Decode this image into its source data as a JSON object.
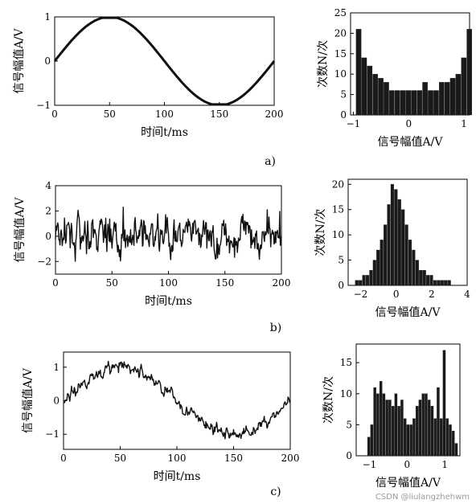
{
  "watermark": "CSDN @liulangzhehwm",
  "chart_data": [
    {
      "id": "a_time",
      "type": "line",
      "panel": "a)",
      "title": "",
      "xlabel": "时间t/ms",
      "ylabel": "信号幅值A/V",
      "xlim": [
        0,
        200
      ],
      "ylim": [
        -1,
        1
      ],
      "xticks": [
        0,
        50,
        100,
        150,
        200
      ],
      "yticks": [
        -1,
        0,
        1
      ],
      "signal": {
        "kind": "sine",
        "amplitude": 1.0,
        "period_ms": 200,
        "noise": 0.0
      },
      "grid": false
    },
    {
      "id": "a_hist",
      "type": "bar",
      "panel": "a)",
      "title": "",
      "xlabel": "信号幅值A/V",
      "ylabel": "次数N/次",
      "xlim": [
        -1.05,
        1.1
      ],
      "ylim": [
        0,
        25
      ],
      "xticks": [
        -1,
        0,
        1
      ],
      "yticks": [
        0,
        5,
        10,
        15,
        20,
        25
      ],
      "bin_start": -0.95,
      "bin_width": 0.1,
      "values": [
        21,
        14,
        12,
        10,
        9,
        8,
        6,
        6,
        6,
        6,
        6,
        6,
        8,
        6,
        6,
        8,
        8,
        9,
        10,
        14,
        21
      ],
      "grid": false
    },
    {
      "id": "b_time",
      "type": "line",
      "panel": "b)",
      "title": "",
      "xlabel": "时间t/ms",
      "ylabel": "信号幅值A/V",
      "xlim": [
        0,
        200
      ],
      "ylim": [
        -3,
        4
      ],
      "xticks": [
        0,
        50,
        100,
        150,
        200
      ],
      "yticks": [
        -2,
        0,
        2,
        4
      ],
      "signal": {
        "kind": "noise",
        "amplitude": 0.0,
        "period_ms": 200,
        "noise": 1.0
      },
      "grid": false
    },
    {
      "id": "b_hist",
      "type": "bar",
      "panel": "b)",
      "title": "",
      "xlabel": "信号幅值A/V",
      "ylabel": "次数N/次",
      "xlim": [
        -2.7,
        4.0
      ],
      "ylim": [
        0,
        21
      ],
      "xticks": [
        -2,
        0,
        2,
        4
      ],
      "yticks": [
        0,
        5,
        10,
        15,
        20
      ],
      "bin_start": -2.3,
      "bin_width": 0.2,
      "values": [
        1,
        1,
        2,
        2,
        3,
        5,
        7,
        9,
        12,
        16,
        20,
        19,
        17,
        15,
        12,
        9,
        7,
        5,
        3,
        3,
        2,
        2,
        1,
        1,
        1,
        1,
        1
      ],
      "grid": false
    },
    {
      "id": "c_time",
      "type": "line",
      "panel": "c)",
      "title": "",
      "xlabel": "时间t/ms",
      "ylabel": "信号幅值A/V",
      "xlim": [
        0,
        200
      ],
      "ylim": [
        -1.45,
        1.45
      ],
      "xticks": [
        0,
        50,
        100,
        150,
        200
      ],
      "yticks": [
        -1,
        0,
        1
      ],
      "signal": {
        "kind": "sine",
        "amplitude": 1.0,
        "period_ms": 200,
        "noise": 0.25
      },
      "grid": false
    },
    {
      "id": "c_hist",
      "type": "bar",
      "panel": "c)",
      "title": "",
      "xlabel": "信号幅值A/V",
      "ylabel": "次数N/次",
      "xlim": [
        -1.35,
        1.4
      ],
      "ylim": [
        0,
        18
      ],
      "xticks": [
        -1,
        0,
        1
      ],
      "yticks": [
        0,
        5,
        10,
        15
      ],
      "bin_start": -1.05,
      "bin_width": 0.08,
      "values": [
        3,
        5,
        11,
        10,
        12,
        10,
        9,
        9,
        8,
        10,
        8,
        9,
        6,
        5,
        5,
        6,
        8,
        9,
        10,
        10,
        9,
        8,
        6,
        11,
        6,
        17,
        6,
        5,
        4,
        2
      ],
      "grid": false
    }
  ]
}
